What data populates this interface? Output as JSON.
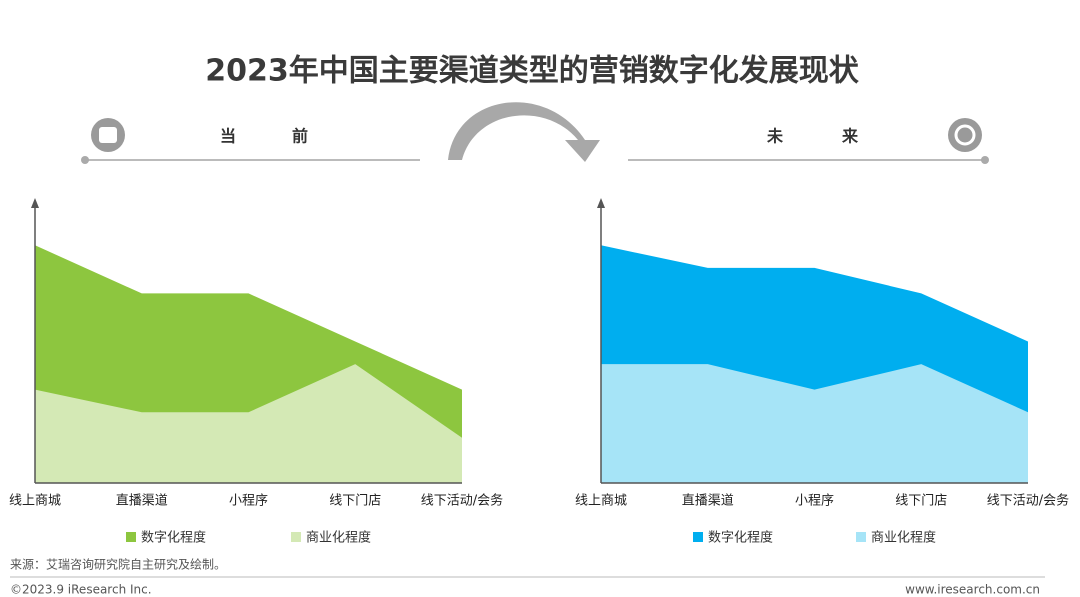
{
  "title": "2023年中国主要渠道类型的营销数字化发展现状",
  "header_left": [
    "当",
    "前"
  ],
  "header_right": [
    "未",
    "来"
  ],
  "source": "来源：艾瑞咨询研究院自主研究及绘制。",
  "footer_left": "©2023.9 iResearch Inc.",
  "footer_right": "www.iresearch.com.cn",
  "chart_data": [
    {
      "type": "area",
      "categories": [
        "线上商城",
        "直播渠道",
        "小程序",
        "线下门店",
        "线下活动/会务"
      ],
      "ylim": [
        0,
        10
      ],
      "series": [
        {
          "name": "数字化程度",
          "color": "#8dc63f",
          "values": [
            8.4,
            6.7,
            6.7,
            5.0,
            3.3
          ]
        },
        {
          "name": "商业化程度",
          "color": "#d4e9b5",
          "values": [
            3.3,
            2.5,
            2.5,
            4.2,
            1.6
          ]
        }
      ]
    },
    {
      "type": "area",
      "categories": [
        "线上商城",
        "直播渠道",
        "小程序",
        "线下门店",
        "线下活动/会务"
      ],
      "ylim": [
        0,
        10
      ],
      "series": [
        {
          "name": "数字化程度",
          "color": "#00aeef",
          "values": [
            8.4,
            7.6,
            7.6,
            6.7,
            5.0
          ]
        },
        {
          "name": "商业化程度",
          "color": "#a6e4f7",
          "values": [
            4.2,
            4.2,
            3.3,
            4.2,
            2.5
          ]
        }
      ]
    }
  ]
}
